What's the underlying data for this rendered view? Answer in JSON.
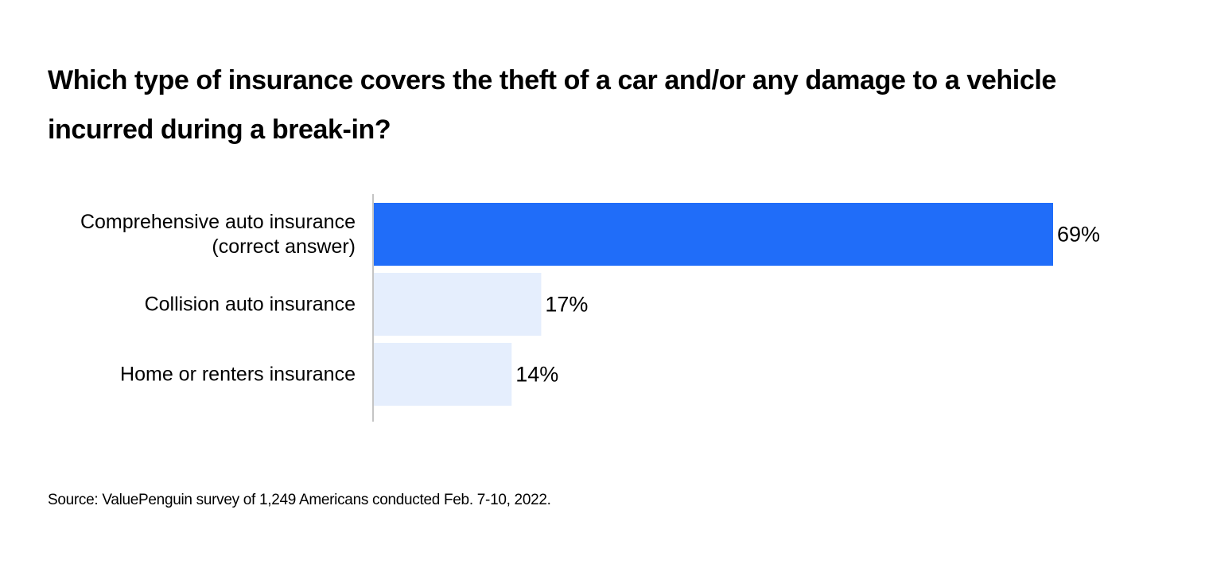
{
  "chart_data": {
    "type": "bar",
    "orientation": "horizontal",
    "title": "Which type of insurance covers the theft of a car and/or any damage to a vehicle incurred during a break-in?",
    "title_lines": [
      "Which type of insurance covers the theft of a car and/or any damage to a vehicle",
      "incurred during a break-in?"
    ],
    "categories": [
      "Comprehensive auto insurance (correct answer)",
      "Collision auto insurance",
      "Home or renters insurance"
    ],
    "category_lines": [
      [
        "Comprehensive auto insurance",
        "(correct answer)"
      ],
      [
        "Collision auto insurance"
      ],
      [
        "Home or renters insurance"
      ]
    ],
    "values": [
      69,
      17,
      14
    ],
    "value_labels": [
      "69%",
      "17%",
      "14%"
    ],
    "unit": "%",
    "xlim": [
      0,
      69
    ],
    "grid": false,
    "legend": "none",
    "colors": {
      "highlight": "#206df9",
      "default": "#e5eefd",
      "axis": "#c4c4c4"
    },
    "bar_colors": [
      "#206df9",
      "#e5eefd",
      "#e5eefd"
    ]
  },
  "source": "Source: ValuePenguin survey of 1,249 Americans conducted Feb. 7-10, 2022."
}
